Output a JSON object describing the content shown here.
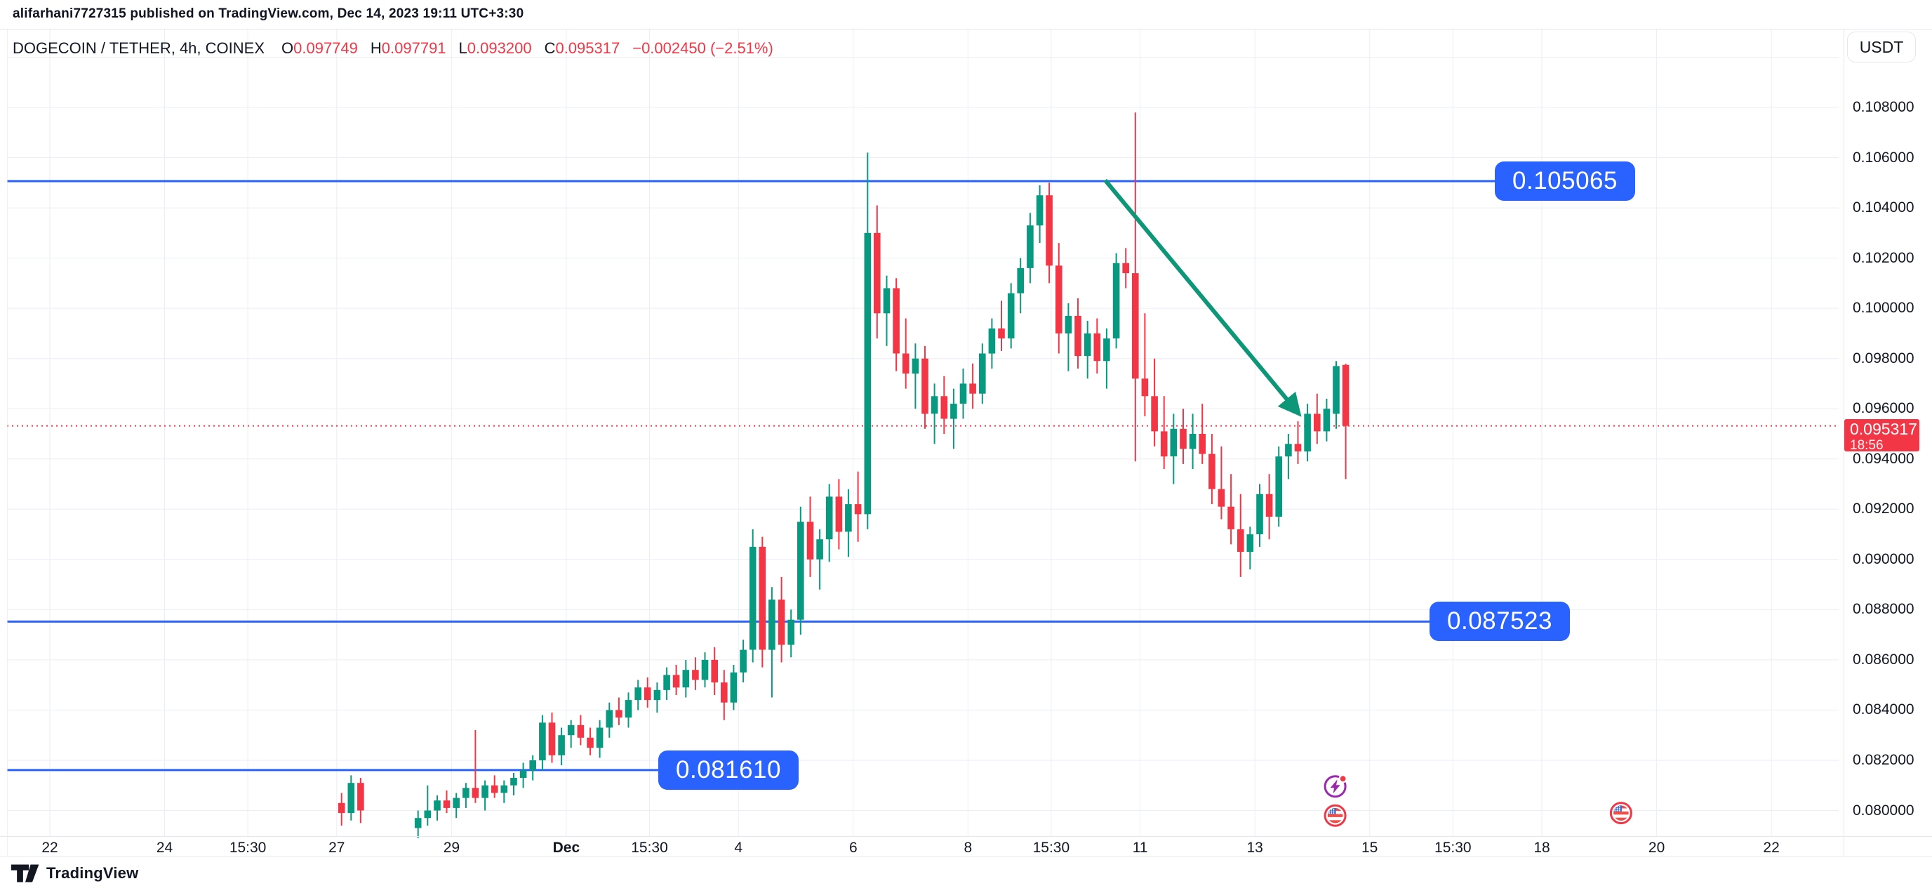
{
  "header": {
    "published_line": "alifarhani7727315 published on TradingView.com, Dec 14, 2023 19:11 UTC+3:30",
    "currency_button": "USDT"
  },
  "legend": {
    "symbol_title": "DOGECOIN / TETHER, 4h, COINEX",
    "ohlc": [
      {
        "label": "O",
        "value": "0.097749"
      },
      {
        "label": "H",
        "value": "0.097791"
      },
      {
        "label": "L",
        "value": "0.093200"
      },
      {
        "label": "C",
        "value": "0.095317"
      }
    ],
    "change": "−0.002450 (−2.51%)"
  },
  "price_axis": {
    "tick_labels": [
      "0.108000",
      "0.106000",
      "0.104000",
      "0.102000",
      "0.100000",
      "0.098000",
      "0.096000",
      "0.094000",
      "0.092000",
      "0.090000",
      "0.088000",
      "0.086000",
      "0.084000",
      "0.082000",
      "0.080000"
    ],
    "tick_prices": [
      0.108,
      0.106,
      0.104,
      0.102,
      0.1,
      0.098,
      0.096,
      0.094,
      0.092,
      0.09,
      0.088,
      0.086,
      0.084,
      0.082,
      0.08
    ],
    "current_price": {
      "label": "0.095317",
      "countdown": "18:56",
      "value": 0.095317
    }
  },
  "time_axis": {
    "ticks": [
      {
        "d": 0,
        "label": "22"
      },
      {
        "d": 2,
        "label": "24"
      },
      {
        "d": 3.45,
        "label": "15:30"
      },
      {
        "d": 5,
        "label": "27"
      },
      {
        "d": 7,
        "label": "29"
      },
      {
        "d": 9,
        "label": "Dec",
        "bold": true
      },
      {
        "d": 10.45,
        "label": "15:30"
      },
      {
        "d": 12,
        "label": "4"
      },
      {
        "d": 14,
        "label": "6"
      },
      {
        "d": 16,
        "label": "8"
      },
      {
        "d": 17.45,
        "label": "15:30"
      },
      {
        "d": 19,
        "label": "11"
      },
      {
        "d": 21,
        "label": "13"
      },
      {
        "d": 23,
        "label": "15"
      },
      {
        "d": 24.45,
        "label": "15:30"
      },
      {
        "d": 26,
        "label": "18"
      },
      {
        "d": 28,
        "label": "20"
      },
      {
        "d": 30,
        "label": "22"
      }
    ]
  },
  "footer": {
    "logo_text": "TradingView",
    "logo_icon": "tradingview-logo-icon"
  },
  "colors": {
    "up": "#089981",
    "down": "#f23645",
    "line_blue": "#2962ff",
    "trend": "#0e9678",
    "grid": "#ebeef3",
    "purple": "#9c27b0",
    "flag_blue": "#3e6cc6"
  },
  "chart_data": {
    "type": "candlestick",
    "symbol": "DOGECOIN / TETHER",
    "interval": "4h",
    "exchange": "COINEX",
    "last_ohlc": {
      "open": 0.097749,
      "high": 0.097791,
      "low": 0.0932,
      "close": 0.095317,
      "change": -0.00245,
      "change_pct": -2.51
    },
    "price_axis_range": [
      0.08,
      0.108
    ],
    "time_axis_note": "d = days since Nov 22 2023 00:00, one candle = 4h",
    "candles": [
      [
        5.0,
        0.0803,
        0.0807,
        0.0794,
        0.0799
      ],
      [
        5.167,
        0.0799,
        0.0814,
        0.0796,
        0.0811
      ],
      [
        5.333,
        0.0811,
        0.0813,
        0.0795,
        0.08
      ],
      [
        6.333,
        0.0793,
        0.08,
        0.0789,
        0.0797
      ],
      [
        6.5,
        0.0797,
        0.081,
        0.0794,
        0.08
      ],
      [
        6.667,
        0.08,
        0.0806,
        0.0796,
        0.0804
      ],
      [
        6.833,
        0.0804,
        0.0808,
        0.0799,
        0.0801
      ],
      [
        7.0,
        0.0801,
        0.0807,
        0.0797,
        0.0805
      ],
      [
        7.167,
        0.0805,
        0.0811,
        0.0801,
        0.0809
      ],
      [
        7.333,
        0.0809,
        0.0832,
        0.0803,
        0.0805
      ],
      [
        7.5,
        0.0805,
        0.0812,
        0.08,
        0.081
      ],
      [
        7.667,
        0.081,
        0.0814,
        0.0805,
        0.0807
      ],
      [
        7.833,
        0.0807,
        0.0812,
        0.0803,
        0.081
      ],
      [
        8.0,
        0.081,
        0.0815,
        0.0806,
        0.0813
      ],
      [
        8.167,
        0.0813,
        0.0819,
        0.0809,
        0.0816
      ],
      [
        8.333,
        0.0816,
        0.0822,
        0.0812,
        0.082
      ],
      [
        8.5,
        0.082,
        0.0838,
        0.0816,
        0.0835
      ],
      [
        8.667,
        0.0835,
        0.0839,
        0.0819,
        0.0822
      ],
      [
        8.833,
        0.0822,
        0.0833,
        0.0818,
        0.083
      ],
      [
        9.0,
        0.083,
        0.0836,
        0.0825,
        0.0834
      ],
      [
        9.167,
        0.0834,
        0.0838,
        0.0826,
        0.0829
      ],
      [
        9.333,
        0.0829,
        0.0833,
        0.0822,
        0.0825
      ],
      [
        9.5,
        0.0825,
        0.0836,
        0.0821,
        0.0833
      ],
      [
        9.667,
        0.0833,
        0.0843,
        0.0829,
        0.084
      ],
      [
        9.833,
        0.084,
        0.0845,
        0.0834,
        0.0837
      ],
      [
        10.0,
        0.0837,
        0.0847,
        0.0833,
        0.0844
      ],
      [
        10.167,
        0.0844,
        0.0852,
        0.084,
        0.0849
      ],
      [
        10.333,
        0.0849,
        0.0853,
        0.0841,
        0.0844
      ],
      [
        10.5,
        0.0844,
        0.0851,
        0.0839,
        0.0848
      ],
      [
        10.667,
        0.0848,
        0.0857,
        0.0844,
        0.0854
      ],
      [
        10.833,
        0.0854,
        0.0858,
        0.0846,
        0.0849
      ],
      [
        11.0,
        0.0849,
        0.086,
        0.0845,
        0.0856
      ],
      [
        11.167,
        0.0856,
        0.0861,
        0.0848,
        0.0852
      ],
      [
        11.333,
        0.0852,
        0.0863,
        0.0849,
        0.086
      ],
      [
        11.5,
        0.086,
        0.0865,
        0.0846,
        0.0851
      ],
      [
        11.667,
        0.0851,
        0.0856,
        0.0836,
        0.0843
      ],
      [
        11.833,
        0.0843,
        0.0858,
        0.084,
        0.0855
      ],
      [
        12.0,
        0.0855,
        0.0868,
        0.0851,
        0.0864
      ],
      [
        12.167,
        0.0864,
        0.0912,
        0.0859,
        0.0905
      ],
      [
        12.333,
        0.0905,
        0.0909,
        0.0857,
        0.0864
      ],
      [
        12.5,
        0.0864,
        0.0889,
        0.0845,
        0.0884
      ],
      [
        12.667,
        0.0884,
        0.0893,
        0.0859,
        0.0866
      ],
      [
        12.833,
        0.0866,
        0.088,
        0.0861,
        0.0876
      ],
      [
        13.0,
        0.0876,
        0.0921,
        0.087,
        0.0915
      ],
      [
        13.167,
        0.0915,
        0.0925,
        0.0893,
        0.09
      ],
      [
        13.333,
        0.09,
        0.0912,
        0.0888,
        0.0908
      ],
      [
        13.5,
        0.0908,
        0.093,
        0.0899,
        0.0925
      ],
      [
        13.667,
        0.0925,
        0.0932,
        0.0904,
        0.0911
      ],
      [
        13.833,
        0.0911,
        0.0928,
        0.0901,
        0.0922
      ],
      [
        14.0,
        0.0922,
        0.0935,
        0.0907,
        0.0918
      ],
      [
        14.167,
        0.0918,
        0.1062,
        0.0912,
        0.103
      ],
      [
        14.333,
        0.103,
        0.1041,
        0.0988,
        0.0998
      ],
      [
        14.5,
        0.0998,
        0.1013,
        0.0985,
        0.1008
      ],
      [
        14.667,
        0.1008,
        0.1012,
        0.0975,
        0.0982
      ],
      [
        14.833,
        0.0982,
        0.0996,
        0.0968,
        0.0974
      ],
      [
        15.0,
        0.0974,
        0.0986,
        0.096,
        0.098
      ],
      [
        15.167,
        0.098,
        0.0985,
        0.0952,
        0.0958
      ],
      [
        15.333,
        0.0958,
        0.097,
        0.0946,
        0.0965
      ],
      [
        15.5,
        0.0965,
        0.0973,
        0.095,
        0.0956
      ],
      [
        15.667,
        0.0956,
        0.0968,
        0.0944,
        0.0962
      ],
      [
        15.833,
        0.0962,
        0.0976,
        0.0956,
        0.097
      ],
      [
        16.0,
        0.097,
        0.0978,
        0.096,
        0.0966
      ],
      [
        16.167,
        0.0966,
        0.0986,
        0.0962,
        0.0982
      ],
      [
        16.333,
        0.0982,
        0.0996,
        0.0976,
        0.0992
      ],
      [
        16.5,
        0.0992,
        0.1003,
        0.0983,
        0.0988
      ],
      [
        16.667,
        0.0988,
        0.101,
        0.0984,
        0.1006
      ],
      [
        16.833,
        0.1006,
        0.102,
        0.0998,
        0.1016
      ],
      [
        17.0,
        0.1016,
        0.1038,
        0.101,
        0.1033
      ],
      [
        17.167,
        0.1033,
        0.1049,
        0.1026,
        0.1045
      ],
      [
        17.333,
        0.1045,
        0.105,
        0.101,
        0.1017
      ],
      [
        17.5,
        0.1017,
        0.1026,
        0.0982,
        0.099
      ],
      [
        17.667,
        0.099,
        0.1002,
        0.0975,
        0.0997
      ],
      [
        17.833,
        0.0997,
        0.1004,
        0.0976,
        0.0981
      ],
      [
        18.0,
        0.0981,
        0.0995,
        0.0972,
        0.099
      ],
      [
        18.167,
        0.099,
        0.0996,
        0.0974,
        0.0979
      ],
      [
        18.333,
        0.0979,
        0.0992,
        0.0968,
        0.0988
      ],
      [
        18.5,
        0.0988,
        0.1022,
        0.0984,
        0.1018
      ],
      [
        18.667,
        0.1018,
        0.1024,
        0.1008,
        0.1014
      ],
      [
        18.833,
        0.1014,
        0.1078,
        0.0939,
        0.0972
      ],
      [
        19.0,
        0.0972,
        0.0998,
        0.0957,
        0.0965
      ],
      [
        19.167,
        0.0965,
        0.098,
        0.0945,
        0.0951
      ],
      [
        19.333,
        0.0951,
        0.0965,
        0.0936,
        0.0941
      ],
      [
        19.5,
        0.0941,
        0.0958,
        0.093,
        0.0952
      ],
      [
        19.667,
        0.0952,
        0.096,
        0.0938,
        0.0944
      ],
      [
        19.833,
        0.0944,
        0.0958,
        0.0936,
        0.095
      ],
      [
        20.0,
        0.095,
        0.0962,
        0.0938,
        0.0942
      ],
      [
        20.167,
        0.0942,
        0.095,
        0.0922,
        0.0928
      ],
      [
        20.333,
        0.0928,
        0.0945,
        0.0916,
        0.0921
      ],
      [
        20.5,
        0.0921,
        0.0934,
        0.0906,
        0.0912
      ],
      [
        20.667,
        0.0912,
        0.0926,
        0.0893,
        0.0903
      ],
      [
        20.833,
        0.0903,
        0.0913,
        0.0896,
        0.091
      ],
      [
        21.0,
        0.091,
        0.093,
        0.0905,
        0.0926
      ],
      [
        21.167,
        0.0926,
        0.0934,
        0.0908,
        0.0917
      ],
      [
        21.333,
        0.0917,
        0.0945,
        0.0913,
        0.0941
      ],
      [
        21.5,
        0.0941,
        0.095,
        0.0932,
        0.0946
      ],
      [
        21.667,
        0.0946,
        0.0955,
        0.0938,
        0.0943
      ],
      [
        21.833,
        0.0943,
        0.0962,
        0.0939,
        0.0958
      ],
      [
        22.0,
        0.0958,
        0.0966,
        0.0946,
        0.0951
      ],
      [
        22.167,
        0.0951,
        0.0964,
        0.0947,
        0.096
      ],
      [
        22.333,
        0.0958,
        0.0979,
        0.0952,
        0.0977
      ],
      [
        22.5,
        0.097749,
        0.097791,
        0.0932,
        0.095317
      ]
    ],
    "horizontal_lines": [
      {
        "price": 0.105065,
        "label": "0.105065",
        "label_cx": 2230
      },
      {
        "price": 0.087523,
        "label": "0.087523",
        "label_cx": 2137
      },
      {
        "price": 0.08161,
        "label": "0.081610",
        "label_cx": 1038
      }
    ],
    "trend_line": {
      "d1": 18.39,
      "p1": 0.1051,
      "d2": 21.73,
      "p2": 0.0959
    },
    "current_price_line": 0.095317,
    "event_markers": [
      {
        "icon": "economic-event-lightning-icon",
        "d": 22.4,
        "p": 0.08096
      },
      {
        "icon": "us-flag-icon",
        "d": 22.4,
        "p": 0.0798
      },
      {
        "icon": "us-flag-icon",
        "d": 27.38,
        "p": 0.0799
      }
    ]
  }
}
